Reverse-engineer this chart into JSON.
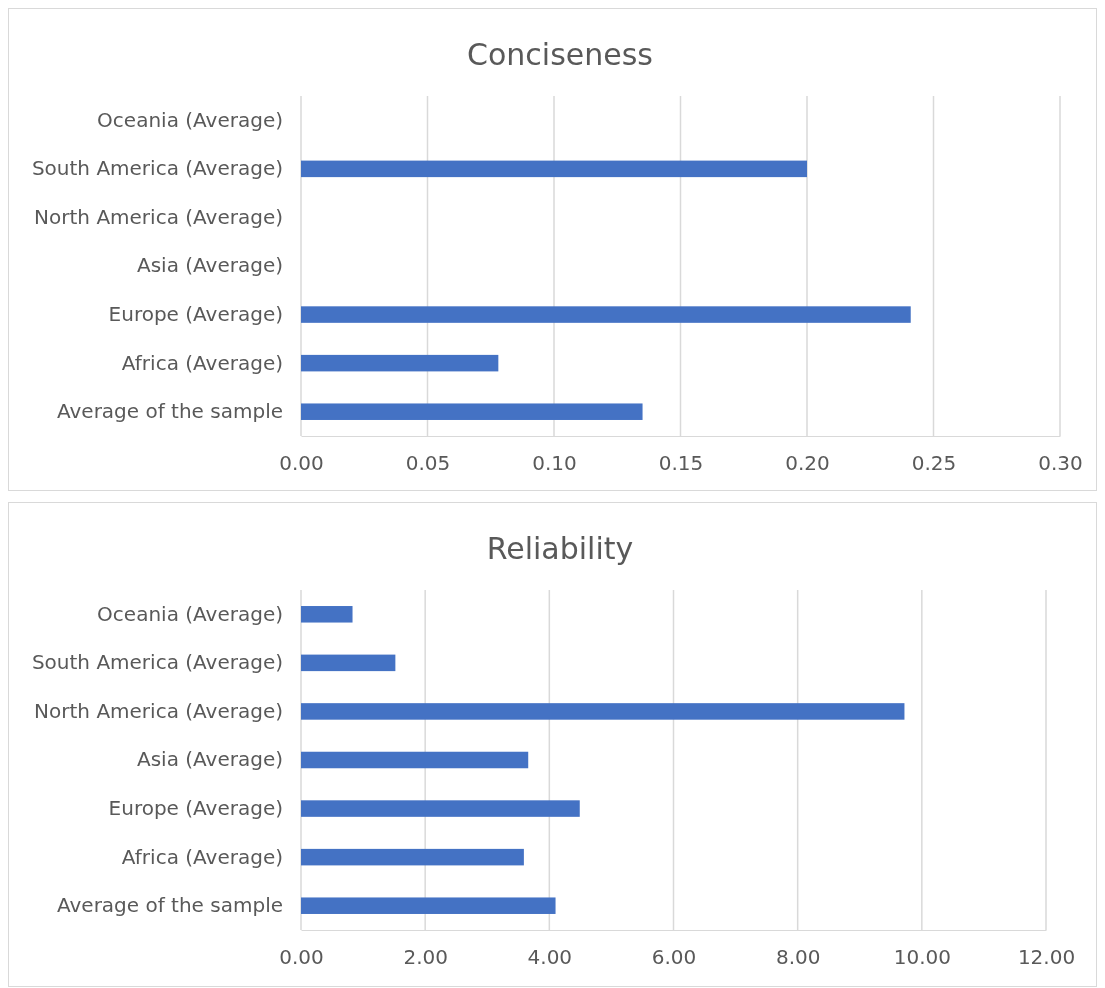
{
  "chart_data": [
    {
      "type": "bar",
      "orientation": "horizontal",
      "title": "Conciseness",
      "categories": [
        "Oceania (Average)",
        "South America (Average)",
        "North America (Average)",
        "Asia (Average)",
        "Europe (Average)",
        "Africa (Average)",
        "Average of the sample"
      ],
      "values": [
        null,
        0.2,
        null,
        null,
        0.241,
        0.078,
        0.135
      ],
      "color": "#4472c4",
      "xlim": [
        0,
        0.3
      ],
      "xticks": [
        {
          "value": 0,
          "label": "0.00"
        },
        {
          "value": 0.05,
          "label": "0.05"
        },
        {
          "value": 0.1,
          "label": "0.10"
        },
        {
          "value": 0.15,
          "label": "0.15"
        },
        {
          "value": 0.2,
          "label": "0.20"
        },
        {
          "value": 0.25,
          "label": "0.25"
        },
        {
          "value": 0.3,
          "label": "0.30"
        }
      ],
      "grid": "x"
    },
    {
      "type": "bar",
      "orientation": "horizontal",
      "title": "Reliability",
      "categories": [
        "Oceania (Average)",
        "South America (Average)",
        "North America (Average)",
        "Asia (Average)",
        "Europe (Average)",
        "Africa (Average)",
        "Average of the sample"
      ],
      "values": [
        0.83,
        1.52,
        9.72,
        3.66,
        4.49,
        3.59,
        4.1
      ],
      "color": "#4472c4",
      "xlim": [
        0,
        12
      ],
      "xticks": [
        {
          "value": 0,
          "label": "0.00"
        },
        {
          "value": 2,
          "label": "2.00"
        },
        {
          "value": 4,
          "label": "4.00"
        },
        {
          "value": 6,
          "label": "6.00"
        },
        {
          "value": 8,
          "label": "8.00"
        },
        {
          "value": 10,
          "label": "10.00"
        },
        {
          "value": 12,
          "label": "12.00"
        }
      ],
      "grid": "x"
    }
  ]
}
